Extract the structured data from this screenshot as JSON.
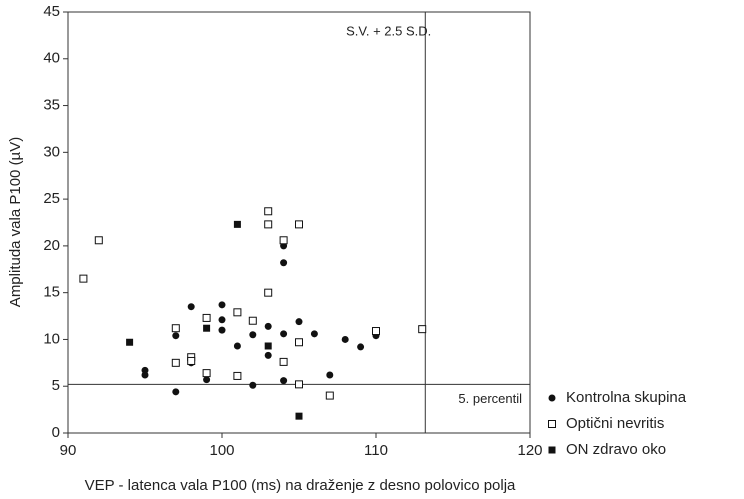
{
  "chart_data": {
    "type": "scatter",
    "x_label": "VEP - latenca vala P100 (ms) na draženje z desno polovico polja",
    "y_label": "Amplituda vala P100 (µV)",
    "xlim": [
      90,
      120
    ],
    "xticks": [
      90,
      100,
      110,
      120
    ],
    "ylim": [
      0,
      45
    ],
    "yticks": [
      0,
      5,
      10,
      15,
      20,
      25,
      30,
      35,
      40,
      45
    ],
    "grid": false,
    "legend": "right-bottom",
    "reference_lines": [
      {
        "axis": "x",
        "value": 113.2,
        "label": "S.V. + 2.5 S.D."
      },
      {
        "axis": "y",
        "value": 5.2,
        "label": "5. percentil"
      }
    ],
    "series": [
      {
        "name": "Kontrolna skupina",
        "marker": "circle",
        "color": "#111111",
        "x": [
          95,
          95,
          97,
          97,
          98,
          98,
          99,
          100,
          100,
          100,
          101,
          102,
          102,
          103,
          103,
          104,
          104,
          104,
          104,
          105,
          106,
          107,
          108,
          109,
          110
        ],
        "values": [
          6.7,
          6.2,
          10.4,
          4.4,
          13.5,
          7.5,
          5.7,
          13.7,
          12.1,
          11.0,
          9.3,
          10.5,
          5.1,
          11.4,
          8.3,
          20.0,
          18.2,
          10.6,
          5.6,
          11.9,
          10.6,
          6.2,
          10.0,
          9.2,
          10.4
        ]
      },
      {
        "name": "Optični nevritis",
        "marker": "square-open",
        "color": "#111111",
        "x": [
          91,
          92,
          97,
          97,
          98,
          98,
          99,
          99,
          101,
          101,
          102,
          103,
          103,
          103,
          104,
          104,
          105,
          105,
          105,
          107,
          110,
          113
        ],
        "values": [
          16.5,
          20.6,
          11.2,
          7.5,
          8.1,
          7.7,
          12.3,
          6.4,
          12.9,
          6.1,
          12.0,
          23.7,
          22.3,
          15.0,
          20.6,
          7.6,
          22.3,
          9.7,
          5.2,
          4.0,
          10.9,
          11.1
        ]
      },
      {
        "name": "ON zdravo oko",
        "marker": "square",
        "color": "#111111",
        "x": [
          94,
          99,
          101,
          103,
          105
        ],
        "values": [
          9.7,
          11.2,
          22.3,
          9.3,
          1.8
        ]
      }
    ]
  }
}
